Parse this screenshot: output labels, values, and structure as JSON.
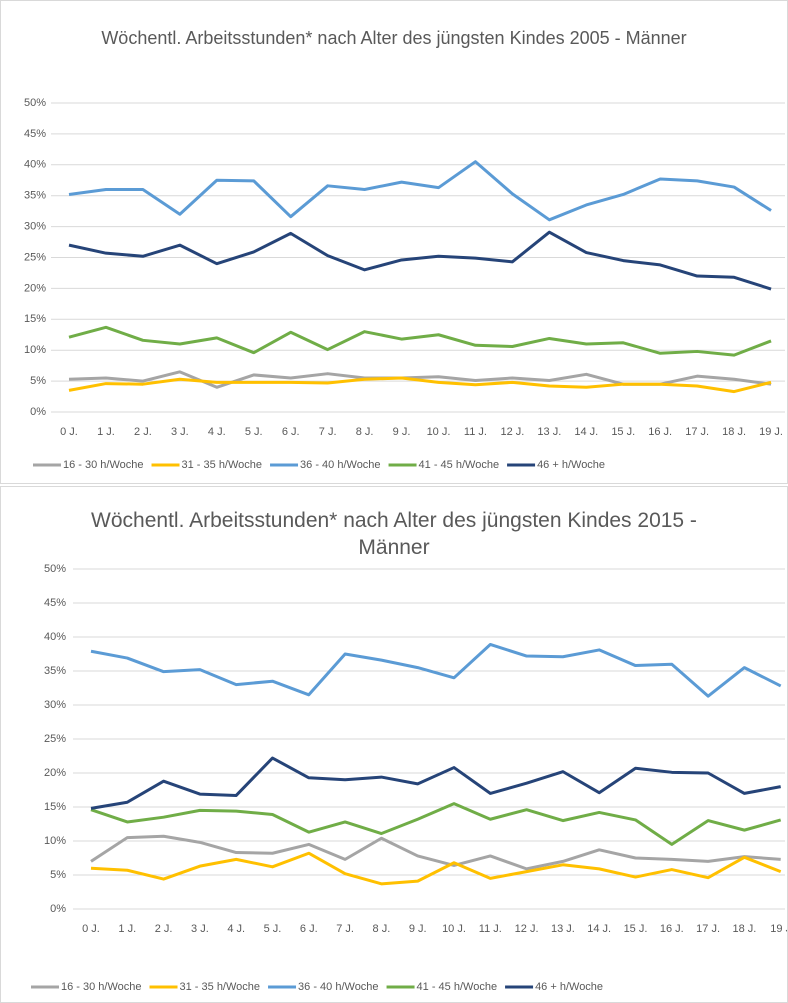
{
  "chart_data": [
    {
      "type": "line",
      "title": "Wöchentl. Arbeitsstunden* nach Alter des jüngsten Kindes 2005 - Männer",
      "categories": [
        "0 J.",
        "1 J.",
        "2 J.",
        "3 J.",
        "4 J.",
        "5 J.",
        "6 J.",
        "7 J.",
        "8 J.",
        "9 J.",
        "10 J.",
        "11 J.",
        "12 J.",
        "13 J.",
        "14 J.",
        "15 J.",
        "16 J.",
        "17 J.",
        "18 J.",
        "19 J."
      ],
      "series": [
        {
          "name": "16 - 30 h/Woche",
          "color": "#a5a5a5",
          "values": [
            5.3,
            5.5,
            5.0,
            6.5,
            4.0,
            6.0,
            5.5,
            6.2,
            5.5,
            5.5,
            5.7,
            5.1,
            5.5,
            5.1,
            6.1,
            4.5,
            4.5,
            5.8,
            5.3,
            4.5
          ]
        },
        {
          "name": "31 - 35 h/Woche",
          "color": "#ffc000",
          "values": [
            3.5,
            4.6,
            4.5,
            5.3,
            4.8,
            4.8,
            4.8,
            4.7,
            5.3,
            5.5,
            4.8,
            4.4,
            4.8,
            4.2,
            4.0,
            4.5,
            4.5,
            4.2,
            3.3,
            4.8
          ]
        },
        {
          "name": "36 - 40 h/Woche",
          "color": "#5b9bd5",
          "values": [
            35.2,
            36.0,
            36.0,
            32.0,
            37.5,
            37.4,
            31.6,
            36.6,
            36.0,
            37.2,
            36.3,
            40.5,
            35.3,
            31.1,
            33.5,
            35.2,
            37.7,
            37.4,
            36.4,
            32.6
          ]
        },
        {
          "name": "41 - 45 h/Woche",
          "color": "#70ad47",
          "values": [
            12.1,
            13.7,
            11.6,
            11.0,
            12.0,
            9.6,
            12.9,
            10.1,
            13.0,
            11.8,
            12.5,
            10.8,
            10.6,
            11.9,
            11.0,
            11.2,
            9.5,
            9.8,
            9.2,
            11.5
          ]
        },
        {
          "name": "46 + h/Woche",
          "color": "#264478",
          "values": [
            27.0,
            25.7,
            25.2,
            27.0,
            24.0,
            25.9,
            28.9,
            25.3,
            23.0,
            24.6,
            25.2,
            24.9,
            24.3,
            29.1,
            25.8,
            24.5,
            23.8,
            22.0,
            21.8,
            19.9
          ]
        }
      ],
      "ylim": [
        0,
        50
      ],
      "yticks": [
        {
          "value": 0,
          "label": "0%"
        },
        {
          "value": 5,
          "label": "5%"
        },
        {
          "value": 10,
          "label": "10%"
        },
        {
          "value": 15,
          "label": "15%"
        },
        {
          "value": 20,
          "label": "20%"
        },
        {
          "value": 25,
          "label": "25%"
        },
        {
          "value": 30,
          "label": "30%"
        },
        {
          "value": 35,
          "label": "35%"
        },
        {
          "value": 40,
          "label": "40%"
        },
        {
          "value": 45,
          "label": "45%"
        },
        {
          "value": 50,
          "label": "50%"
        }
      ],
      "grid": true,
      "legend": "bottom"
    },
    {
      "type": "line",
      "title": "Wöchentl. Arbeitsstunden* nach Alter des jüngsten Kindes 2015 - Männer",
      "categories": [
        "0 J.",
        "1 J.",
        "2 J.",
        "3 J.",
        "4 J.",
        "5 J.",
        "6 J.",
        "7 J.",
        "8 J.",
        "9 J.",
        "10 J.",
        "11 J.",
        "12 J.",
        "13 J.",
        "14 J.",
        "15 J.",
        "16 J.",
        "17 J.",
        "18 J.",
        "19 J"
      ],
      "series": [
        {
          "name": "16 - 30 h/Woche",
          "color": "#a5a5a5",
          "values": [
            7.0,
            10.5,
            10.7,
            9.8,
            8.3,
            8.2,
            9.5,
            7.3,
            10.4,
            7.8,
            6.4,
            7.8,
            5.9,
            7.0,
            8.7,
            7.5,
            7.3,
            7.0,
            7.7,
            7.3
          ]
        },
        {
          "name": "31 - 35 h/Woche",
          "color": "#ffc000",
          "values": [
            6.0,
            5.7,
            4.4,
            6.3,
            7.3,
            6.2,
            8.2,
            5.2,
            3.7,
            4.1,
            6.8,
            4.5,
            5.5,
            6.5,
            5.9,
            4.7,
            5.8,
            4.6,
            7.6,
            5.5
          ]
        },
        {
          "name": "36 - 40 h/Woche",
          "color": "#5b9bd5",
          "values": [
            37.9,
            36.9,
            34.9,
            35.2,
            33.0,
            33.5,
            31.5,
            37.5,
            36.6,
            35.5,
            34.0,
            38.9,
            37.2,
            37.1,
            38.1,
            35.8,
            36.0,
            31.3,
            35.5,
            32.8
          ]
        },
        {
          "name": "41 - 45 h/Woche",
          "color": "#70ad47",
          "values": [
            14.6,
            12.8,
            13.5,
            14.5,
            14.4,
            13.9,
            11.3,
            12.8,
            11.1,
            13.2,
            15.5,
            13.2,
            14.6,
            13.0,
            14.2,
            13.1,
            9.5,
            13.0,
            11.6,
            13.1
          ]
        },
        {
          "name": "46 + h/Woche",
          "color": "#264478",
          "values": [
            14.8,
            15.7,
            18.8,
            16.9,
            16.7,
            22.2,
            19.3,
            19.0,
            19.4,
            18.4,
            20.8,
            17.0,
            18.5,
            20.2,
            17.1,
            20.7,
            20.1,
            20.0,
            17.0,
            18.0
          ]
        }
      ],
      "ylim": [
        0,
        50
      ],
      "yticks": [
        {
          "value": 0,
          "label": "0%"
        },
        {
          "value": 5,
          "label": "5%"
        },
        {
          "value": 10,
          "label": "10%"
        },
        {
          "value": 15,
          "label": "15%"
        },
        {
          "value": 20,
          "label": "20%"
        },
        {
          "value": 25,
          "label": "25%"
        },
        {
          "value": 30,
          "label": "30%"
        },
        {
          "value": 35,
          "label": "35%"
        },
        {
          "value": 40,
          "label": "40%"
        },
        {
          "value": 45,
          "label": "45%"
        },
        {
          "value": 50,
          "label": "50%"
        }
      ],
      "grid": true,
      "legend": "bottom"
    }
  ]
}
